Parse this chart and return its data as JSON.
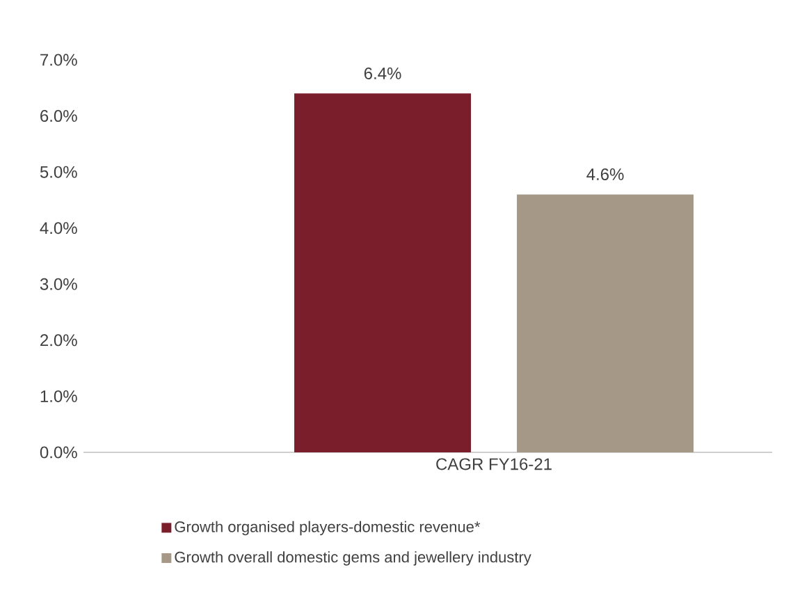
{
  "chart_data": {
    "type": "bar",
    "categories": [
      "CAGR FY16-21"
    ],
    "series": [
      {
        "name": "Growth organised players-domestic revenue*",
        "color": "#7b1e2b",
        "values": [
          6.4
        ],
        "value_labels": [
          "6.4%"
        ]
      },
      {
        "name": "Growth overall domestic gems and jewellery industry",
        "color": "#a69886",
        "values": [
          4.6
        ],
        "value_labels": [
          "4.6%"
        ]
      }
    ],
    "ylim": [
      0,
      7
    ],
    "yticks": [
      {
        "value": 0,
        "label": "0.0%"
      },
      {
        "value": 1,
        "label": "1.0%"
      },
      {
        "value": 2,
        "label": "2.0%"
      },
      {
        "value": 3,
        "label": "3.0%"
      },
      {
        "value": 4,
        "label": "4.0%"
      },
      {
        "value": 5,
        "label": "5.0%"
      },
      {
        "value": 6,
        "label": "6.0%"
      },
      {
        "value": 7,
        "label": "7.0%"
      }
    ],
    "grid": false,
    "legend": "bottom"
  }
}
